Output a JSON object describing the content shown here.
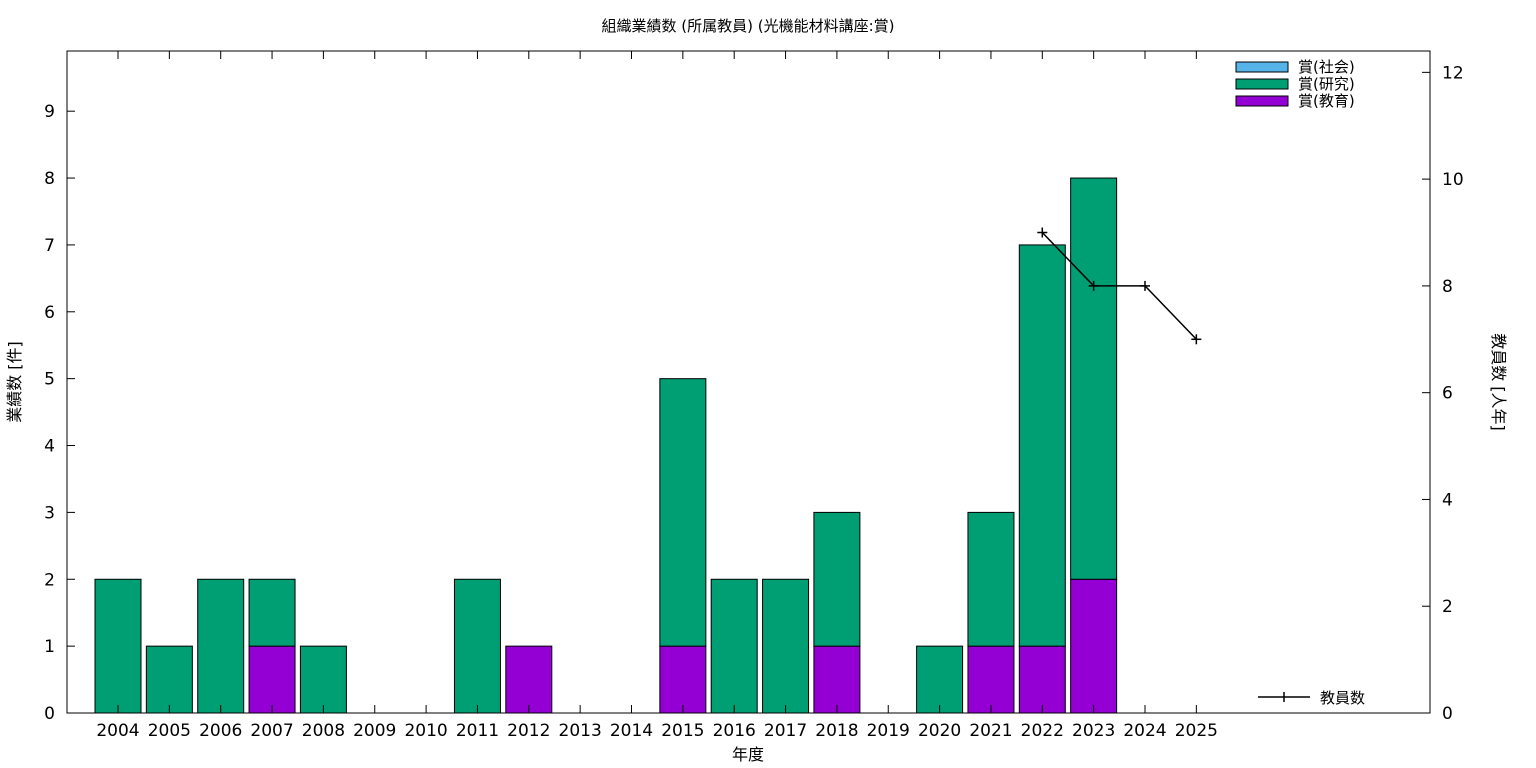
{
  "chart_data": {
    "type": "bar",
    "stacked": true,
    "title": "組織業績数 (所属教員) (光機能材料講座:賞)",
    "xlabel": "年度",
    "ylabel": "業績数 [件]",
    "y2label": "教員数 [人年]",
    "ylim": [
      0,
      9.9
    ],
    "y2lim": [
      0,
      12.4
    ],
    "yticks": [
      0,
      1,
      2,
      3,
      4,
      5,
      6,
      7,
      8,
      9
    ],
    "y2ticks": [
      0,
      2,
      4,
      6,
      8,
      10,
      12
    ],
    "grid": false,
    "legend_position": "top-right",
    "categories": [
      "2004",
      "2005",
      "2006",
      "2007",
      "2008",
      "2009",
      "2010",
      "2011",
      "2012",
      "2013",
      "2014",
      "2015",
      "2016",
      "2017",
      "2018",
      "2019",
      "2020",
      "2021",
      "2022",
      "2023",
      "2024",
      "2025"
    ],
    "series": [
      {
        "name": "賞(教育)",
        "color": "#9400d3",
        "values": [
          0,
          0,
          0,
          1,
          0,
          0,
          0,
          0,
          1,
          0,
          0,
          1,
          0,
          0,
          1,
          0,
          0,
          1,
          1,
          2,
          0,
          0
        ]
      },
      {
        "name": "賞(研究)",
        "color": "#009e73",
        "values": [
          2,
          1,
          2,
          1,
          1,
          0,
          0,
          2,
          0,
          0,
          0,
          4,
          2,
          2,
          2,
          0,
          1,
          2,
          6,
          6,
          0,
          0
        ]
      },
      {
        "name": "賞(社会)",
        "color": "#56b4e9",
        "values": [
          0,
          0,
          0,
          0,
          0,
          0,
          0,
          0,
          0,
          0,
          0,
          0,
          0,
          0,
          0,
          0,
          0,
          0,
          0,
          0,
          0,
          0
        ]
      }
    ],
    "line_series": {
      "name": "教員数",
      "axis": "y2",
      "color": "#000000",
      "points": [
        {
          "x": "2022",
          "y": 9
        },
        {
          "x": "2023",
          "y": 8
        },
        {
          "x": "2024",
          "y": 8
        },
        {
          "x": "2025",
          "y": 7
        }
      ]
    },
    "legend_order": [
      "賞(社会)",
      "賞(研究)",
      "賞(教育)"
    ]
  }
}
